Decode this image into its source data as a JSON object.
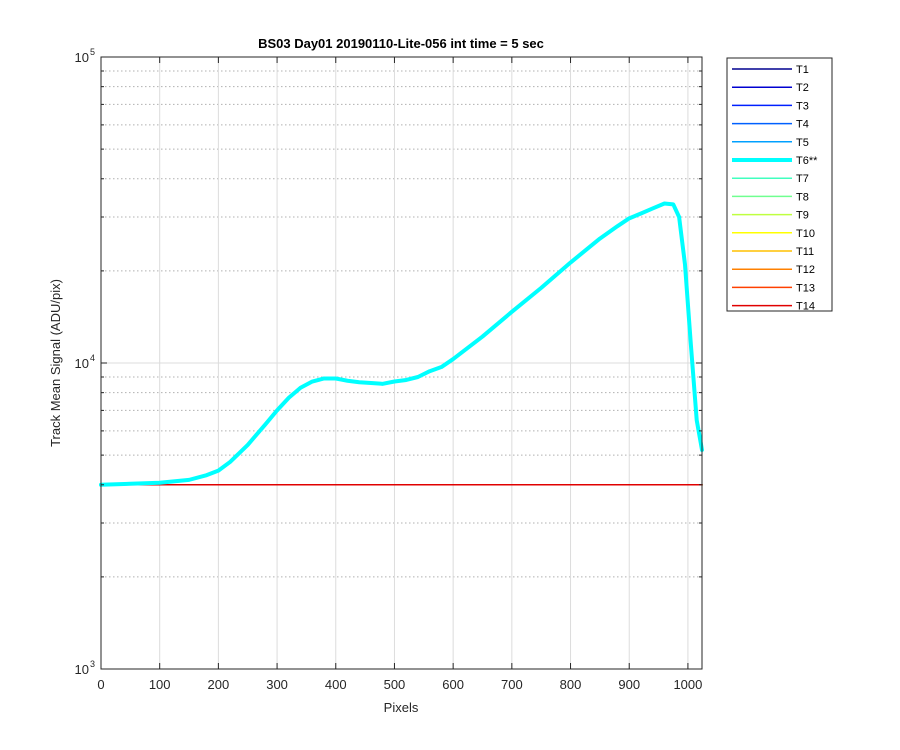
{
  "chart_data": {
    "type": "line",
    "title": "BS03 Day01 20190110-Lite-056 int time = 5 sec",
    "xlabel": "Pixels",
    "ylabel": "Track Mean Signal (ADU/pix)",
    "xlim": [
      0,
      1024
    ],
    "ylim": [
      1000,
      100000
    ],
    "yscale": "log",
    "x_ticks": [
      0,
      100,
      200,
      300,
      400,
      500,
      600,
      700,
      800,
      900,
      1000
    ],
    "y_ticks": [
      {
        "value": 1000,
        "base": "10",
        "exp": "3"
      },
      {
        "value": 10000,
        "base": "10",
        "exp": "4"
      },
      {
        "value": 100000,
        "base": "10",
        "exp": "5"
      }
    ],
    "grid": true,
    "minor_grid": true,
    "legend_position": "outside-right",
    "series": [
      {
        "name": "T1",
        "color": "#00008f",
        "width": 1.5,
        "x": [
          0,
          1024
        ],
        "y": [
          4000,
          4000
        ]
      },
      {
        "name": "T2",
        "color": "#0000d0",
        "width": 1.5,
        "x": [
          0,
          1024
        ],
        "y": [
          4000,
          4000
        ]
      },
      {
        "name": "T3",
        "color": "#0020ff",
        "width": 1.5,
        "x": [
          0,
          1024
        ],
        "y": [
          4000,
          4000
        ]
      },
      {
        "name": "T4",
        "color": "#0060ff",
        "width": 1.5,
        "x": [
          0,
          1024
        ],
        "y": [
          4000,
          4000
        ]
      },
      {
        "name": "T5",
        "color": "#00a0ff",
        "width": 1.5,
        "x": [
          0,
          1024
        ],
        "y": [
          4000,
          4000
        ]
      },
      {
        "name": "T6**",
        "color": "#00ffff",
        "width": 4,
        "highlight": true,
        "x": [
          0,
          50,
          100,
          150,
          180,
          200,
          220,
          250,
          280,
          300,
          320,
          340,
          360,
          380,
          400,
          420,
          440,
          460,
          480,
          500,
          520,
          540,
          560,
          580,
          600,
          650,
          700,
          750,
          800,
          850,
          880,
          900,
          920,
          940,
          960,
          975,
          985,
          995,
          1005,
          1015,
          1024
        ],
        "y": [
          4000,
          4030,
          4060,
          4150,
          4300,
          4450,
          4750,
          5400,
          6300,
          7000,
          7700,
          8300,
          8700,
          8900,
          8900,
          8750,
          8650,
          8600,
          8550,
          8700,
          8800,
          9000,
          9400,
          9700,
          10300,
          12200,
          14700,
          17600,
          21300,
          25500,
          28000,
          29700,
          30800,
          32000,
          33200,
          33000,
          30000,
          21000,
          11500,
          6500,
          5200
        ]
      },
      {
        "name": "T7",
        "color": "#40ffbf",
        "width": 1.5,
        "x": [
          0,
          1024
        ],
        "y": [
          4000,
          4000
        ]
      },
      {
        "name": "T8",
        "color": "#70ff90",
        "width": 1.5,
        "x": [
          0,
          1024
        ],
        "y": [
          4000,
          4000
        ]
      },
      {
        "name": "T9",
        "color": "#bfff40",
        "width": 1.5,
        "x": [
          0,
          1024
        ],
        "y": [
          4000,
          4000
        ]
      },
      {
        "name": "T10",
        "color": "#ffff00",
        "width": 1.5,
        "x": [
          0,
          1024
        ],
        "y": [
          4000,
          4000
        ]
      },
      {
        "name": "T11",
        "color": "#ffc000",
        "width": 1.5,
        "x": [
          0,
          1024
        ],
        "y": [
          4000,
          4000
        ]
      },
      {
        "name": "T12",
        "color": "#ff8000",
        "width": 1.5,
        "x": [
          0,
          1024
        ],
        "y": [
          4000,
          4000
        ]
      },
      {
        "name": "T13",
        "color": "#ff4000",
        "width": 1.5,
        "x": [
          0,
          1024
        ],
        "y": [
          4000,
          4000
        ]
      },
      {
        "name": "T14",
        "color": "#e00000",
        "width": 1.5,
        "x": [
          0,
          1024
        ],
        "y": [
          4000,
          4000
        ]
      }
    ]
  }
}
